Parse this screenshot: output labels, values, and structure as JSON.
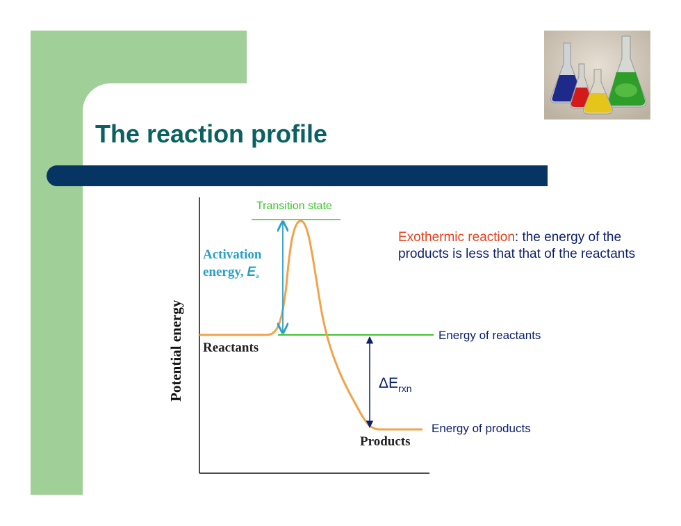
{
  "slide": {
    "title": "The reaction profile",
    "colors": {
      "green": "#a0cf97",
      "blue_bar": "#063564",
      "title": "#0b6161"
    },
    "photo_icon": "chemistry-flasks-photo"
  },
  "diagram": {
    "y_axis_label": "Potential energy",
    "transition_state": "Transition state",
    "activation_line1": "Activation",
    "activation_line2_text": "energy, ",
    "activation_symbol": "E",
    "activation_subscript": "a",
    "reactants": "Reactants",
    "products": "Products",
    "energy_of_reactants": "Energy of reactants",
    "energy_of_products": "Energy of products",
    "delta_main": "ΔE",
    "delta_sub": "rxn",
    "note_highlight": "Exothermic reaction",
    "note_rest": ": the energy of the products is less that that of the reactants",
    "colors": {
      "curve": "#f0a34a",
      "green_line": "#3fc42c",
      "cyan_arrow": "#2b9fc5",
      "navy_arrow": "#0c1f6b"
    }
  }
}
